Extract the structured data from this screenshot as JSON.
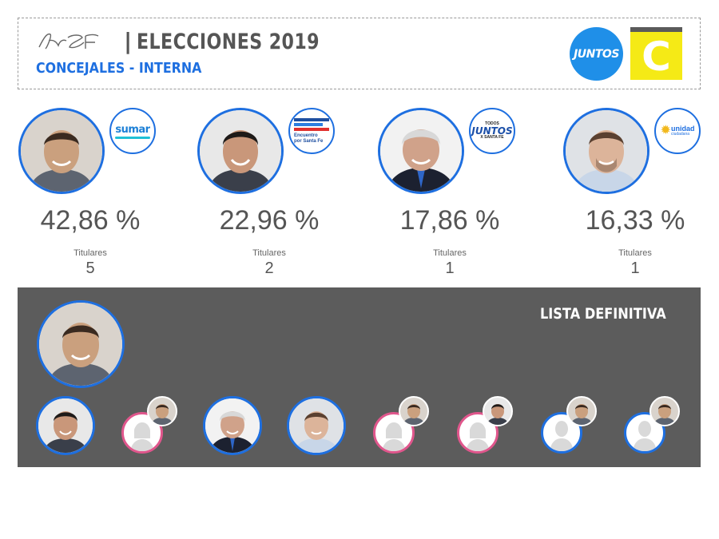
{
  "header": {
    "title": "ELECCIONES 2019",
    "subtitle": "CONCEJALES - INTERNA",
    "logo_juntos_text": "JUNTOS",
    "logo_c_text": "C",
    "brand_blue": "#1e6fe0",
    "brand_yellow": "#f5ea16"
  },
  "candidates": [
    {
      "percent": "42,86 %",
      "titulares_label": "Titulares",
      "titulares": "5",
      "party": "sumar",
      "skin": "#caa07e",
      "hair": "#3a2a20",
      "suit": "#5d6470"
    },
    {
      "percent": "22,96 %",
      "titulares_label": "Titulares",
      "titulares": "2",
      "party": "Encuentro por Santa Fe",
      "party_short": "Encuentro por Santa Fe",
      "skin": "#c9977a",
      "hair": "#1e1a18",
      "suit": "#3a3f4a"
    },
    {
      "percent": "17,86 %",
      "titulares_label": "Titulares",
      "titulares": "1",
      "party": "Todos Juntos x Santa Fe",
      "skin": "#d0a28a",
      "hair": "#d8d8d8",
      "suit": "#1c2130"
    },
    {
      "percent": "16,33 %",
      "titulares_label": "Titulares",
      "titulares": "1",
      "party": "unidad ciudadana",
      "skin": "#dcb49a",
      "hair": "#5a4030",
      "suit": "#c8d6e8"
    }
  ],
  "party_badges": {
    "sumar": {
      "text": "sumar"
    },
    "encuentro": {
      "line1": "Encuentro",
      "line2": "por Santa Fe"
    },
    "juntos": {
      "line1": "TODOS",
      "line2": "JUNTOS",
      "line3": "X SANTA FE"
    },
    "unidad": {
      "line1": "unidad",
      "line2": "ciudadana"
    }
  },
  "panel": {
    "title": "LISTA DEFINITIVA",
    "slots": [
      {
        "kind": "photo",
        "candidate": 1
      },
      {
        "kind": "female",
        "mini": 0
      },
      {
        "kind": "photo",
        "candidate": 2
      },
      {
        "kind": "photo",
        "candidate": 3
      },
      {
        "kind": "female",
        "mini": 0
      },
      {
        "kind": "female",
        "mini": 1
      },
      {
        "kind": "male",
        "mini": 0
      },
      {
        "kind": "male",
        "mini": 0
      }
    ]
  }
}
